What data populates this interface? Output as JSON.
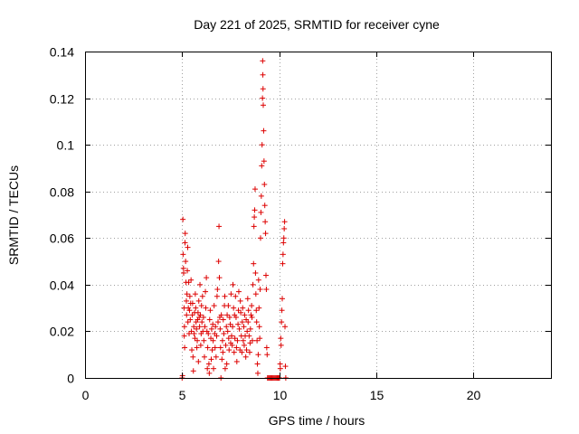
{
  "chart_data": {
    "type": "scatter",
    "title": "Day 221 of 2025, SRMTID for receiver cyne",
    "xlabel": "GPS time / hours",
    "ylabel": "SRMTID / TECUs",
    "xlim": [
      0,
      24
    ],
    "ylim": [
      0,
      0.14
    ],
    "grid": true,
    "xticks": [
      0,
      5,
      10,
      15,
      20
    ],
    "xtick_labels": [
      "0",
      "5",
      "10",
      "15",
      "20"
    ],
    "yticks": [
      0,
      0.02,
      0.04,
      0.06,
      0.08,
      0.1,
      0.12,
      0.14
    ],
    "ytick_labels": [
      "0",
      "0.02",
      "0.04",
      "0.06",
      "0.08",
      "0.1",
      "0.12",
      "0.14"
    ],
    "marker": "+",
    "color": "#dd0000",
    "series": [
      {
        "points": [
          [
            5.0,
            0.0
          ],
          [
            5.02,
            0.001
          ],
          [
            5.04,
            0.068
          ],
          [
            5.05,
            0.053
          ],
          [
            5.07,
            0.047
          ],
          [
            5.08,
            0.045
          ],
          [
            5.1,
            0.03
          ],
          [
            5.11,
            0.018
          ],
          [
            5.12,
            0.022
          ],
          [
            5.13,
            0.013
          ],
          [
            5.15,
            0.058
          ],
          [
            5.16,
            0.062
          ],
          [
            5.18,
            0.05
          ],
          [
            5.2,
            0.041
          ],
          [
            5.22,
            0.033
          ],
          [
            5.23,
            0.027
          ],
          [
            5.25,
            0.036
          ],
          [
            5.27,
            0.046
          ],
          [
            5.29,
            0.056
          ],
          [
            5.3,
            0.024
          ],
          [
            5.32,
            0.03
          ],
          [
            5.34,
            0.041
          ],
          [
            5.36,
            0.019
          ],
          [
            5.38,
            0.029
          ],
          [
            5.4,
            0.035
          ],
          [
            5.42,
            0.025
          ],
          [
            5.44,
            0.032
          ],
          [
            5.46,
            0.042
          ],
          [
            5.48,
            0.02
          ],
          [
            5.5,
            0.012
          ],
          [
            5.52,
            0.027
          ],
          [
            5.54,
            0.032
          ],
          [
            5.56,
            0.009
          ],
          [
            5.58,
            0.003
          ],
          [
            5.6,
            0.022
          ],
          [
            5.62,
            0.019
          ],
          [
            5.64,
            0.028
          ],
          [
            5.66,
            0.017
          ],
          [
            5.68,
            0.036
          ],
          [
            5.7,
            0.03
          ],
          [
            5.72,
            0.024
          ],
          [
            5.74,
            0.021
          ],
          [
            5.76,
            0.013
          ],
          [
            5.78,
            0.016
          ],
          [
            5.8,
            0.025
          ],
          [
            5.82,
            0.028
          ],
          [
            5.84,
            0.007
          ],
          [
            5.86,
            0.033
          ],
          [
            5.88,
            0.026
          ],
          [
            5.9,
            0.022
          ],
          [
            5.92,
            0.04
          ],
          [
            5.94,
            0.027
          ],
          [
            5.96,
            0.014
          ],
          [
            5.98,
            0.019
          ],
          [
            6.0,
            0.031
          ],
          [
            6.02,
            0.024
          ],
          [
            6.05,
            0.035
          ],
          [
            6.07,
            0.02
          ],
          [
            6.1,
            0.026
          ],
          [
            6.12,
            0.016
          ],
          [
            6.15,
            0.009
          ],
          [
            6.17,
            0.022
          ],
          [
            6.2,
            0.037
          ],
          [
            6.22,
            0.03
          ],
          [
            6.25,
            0.043
          ],
          [
            6.28,
            0.02
          ],
          [
            6.3,
            0.004
          ],
          [
            6.32,
            0.013
          ],
          [
            6.35,
            0.019
          ],
          [
            6.38,
            0.006
          ],
          [
            6.4,
            0.002
          ],
          [
            6.42,
            0.025
          ],
          [
            6.45,
            0.029
          ],
          [
            6.48,
            0.017
          ],
          [
            6.5,
            0.008
          ],
          [
            6.52,
            0.021
          ],
          [
            6.55,
            0.012
          ],
          [
            6.58,
            0.023
          ],
          [
            6.6,
            0.016
          ],
          [
            6.62,
            0.004
          ],
          [
            6.65,
            0.031
          ],
          [
            6.68,
            0.019
          ],
          [
            6.7,
            0.013
          ],
          [
            6.72,
            0.022
          ],
          [
            6.75,
            0.009
          ],
          [
            6.78,
            0.018
          ],
          [
            6.8,
            0.035
          ],
          [
            6.82,
            0.038
          ],
          [
            6.85,
            0.024
          ],
          [
            6.88,
            0.05
          ],
          [
            6.9,
            0.065
          ],
          [
            6.92,
            0.043
          ],
          [
            6.94,
            0.026
          ],
          [
            6.96,
            0.021
          ],
          [
            6.98,
            0.013
          ],
          [
            7.0,
            0.0
          ],
          [
            7.02,
            0.027
          ],
          [
            7.05,
            0.008
          ],
          [
            7.08,
            0.016
          ],
          [
            7.1,
            0.011
          ],
          [
            7.12,
            0.025
          ],
          [
            7.15,
            0.019
          ],
          [
            7.18,
            0.031
          ],
          [
            7.2,
            0.035
          ],
          [
            7.22,
            0.004
          ],
          [
            7.25,
            0.014
          ],
          [
            7.28,
            0.022
          ],
          [
            7.3,
            0.006
          ],
          [
            7.32,
            0.027
          ],
          [
            7.35,
            0.02
          ],
          [
            7.38,
            0.031
          ],
          [
            7.4,
            0.017
          ],
          [
            7.42,
            0.012
          ],
          [
            7.45,
            0.026
          ],
          [
            7.48,
            0.023
          ],
          [
            7.5,
            0.015
          ],
          [
            7.52,
            0.036
          ],
          [
            7.55,
            0.018
          ],
          [
            7.58,
            0.014
          ],
          [
            7.6,
            0.022
          ],
          [
            7.62,
            0.04
          ],
          [
            7.65,
            0.03
          ],
          [
            7.68,
            0.011
          ],
          [
            7.7,
            0.027
          ],
          [
            7.72,
            0.017
          ],
          [
            7.75,
            0.035
          ],
          [
            7.78,
            0.026
          ],
          [
            7.8,
            0.013
          ],
          [
            7.82,
            0.007
          ],
          [
            7.85,
            0.016
          ],
          [
            7.88,
            0.023
          ],
          [
            7.9,
            0.029
          ],
          [
            7.92,
            0.037
          ],
          [
            7.95,
            0.021
          ],
          [
            7.98,
            0.012
          ],
          [
            8.0,
            0.033
          ],
          [
            8.02,
            0.028
          ],
          [
            8.05,
            0.018
          ],
          [
            8.08,
            0.011
          ],
          [
            8.1,
            0.024
          ],
          [
            8.12,
            0.03
          ],
          [
            8.15,
            0.016
          ],
          [
            8.18,
            0.022
          ],
          [
            8.2,
            0.014
          ],
          [
            8.22,
            0.027
          ],
          [
            8.25,
            0.018
          ],
          [
            8.28,
            0.009
          ],
          [
            8.3,
            0.025
          ],
          [
            8.32,
            0.012
          ],
          [
            8.35,
            0.02
          ],
          [
            8.38,
            0.034
          ],
          [
            8.4,
            0.024
          ],
          [
            8.42,
            0.029
          ],
          [
            8.45,
            0.018
          ],
          [
            8.48,
            0.011
          ],
          [
            8.5,
            0.015
          ],
          [
            8.52,
            0.021
          ],
          [
            8.55,
            0.027
          ],
          [
            8.58,
            0.031
          ],
          [
            8.6,
            0.026
          ],
          [
            8.62,
            0.016
          ],
          [
            8.65,
            0.04
          ],
          [
            8.68,
            0.049
          ],
          [
            8.7,
            0.065
          ],
          [
            8.72,
            0.069
          ],
          [
            8.74,
            0.072
          ],
          [
            8.76,
            0.081
          ],
          [
            8.78,
            0.045
          ],
          [
            8.8,
            0.036
          ],
          [
            8.82,
            0.029
          ],
          [
            8.84,
            0.024
          ],
          [
            8.86,
            0.016
          ],
          [
            8.88,
            0.006
          ],
          [
            8.9,
            0.002
          ],
          [
            8.92,
            0.01
          ],
          [
            8.94,
            0.042
          ],
          [
            8.96,
            0.03
          ],
          [
            8.98,
            0.022
          ],
          [
            9.0,
            0.017
          ],
          [
            9.02,
            0.038
          ],
          [
            9.04,
            0.06
          ],
          [
            9.06,
            0.071
          ],
          [
            9.08,
            0.078
          ],
          [
            9.1,
            0.091
          ],
          [
            9.12,
            0.1
          ],
          [
            9.14,
            0.12
          ],
          [
            9.15,
            0.136
          ],
          [
            9.16,
            0.13
          ],
          [
            9.17,
            0.124
          ],
          [
            9.18,
            0.117
          ],
          [
            9.2,
            0.106
          ],
          [
            9.22,
            0.093
          ],
          [
            9.24,
            0.083
          ],
          [
            9.26,
            0.074
          ],
          [
            9.28,
            0.067
          ],
          [
            9.3,
            0.062
          ],
          [
            9.32,
            0.044
          ],
          [
            9.34,
            0.038
          ],
          [
            9.36,
            0.013
          ],
          [
            9.38,
            0.01
          ],
          [
            9.4,
            0.0
          ],
          [
            9.45,
            0.0
          ],
          [
            9.5,
            0.0
          ],
          [
            9.55,
            0.0
          ],
          [
            9.6,
            0.0
          ],
          [
            9.65,
            0.0
          ],
          [
            9.7,
            0.0
          ],
          [
            9.75,
            0.0
          ],
          [
            9.8,
            0.0
          ],
          [
            9.85,
            0.0
          ],
          [
            9.9,
            0.0
          ],
          [
            9.95,
            0.0
          ],
          [
            10.0,
            0.0
          ],
          [
            10.02,
            0.0
          ],
          [
            10.05,
            0.006
          ],
          [
            10.06,
            0.004
          ],
          [
            10.08,
            0.017
          ],
          [
            10.1,
            0.014
          ],
          [
            10.12,
            0.024
          ],
          [
            10.14,
            0.029
          ],
          [
            10.16,
            0.034
          ],
          [
            10.18,
            0.049
          ],
          [
            10.2,
            0.053
          ],
          [
            10.22,
            0.058
          ],
          [
            10.24,
            0.06
          ],
          [
            10.26,
            0.064
          ],
          [
            10.28,
            0.067
          ],
          [
            10.3,
            0.022
          ],
          [
            10.32,
            0.005
          ],
          [
            10.34,
            0.0
          ]
        ]
      }
    ]
  }
}
